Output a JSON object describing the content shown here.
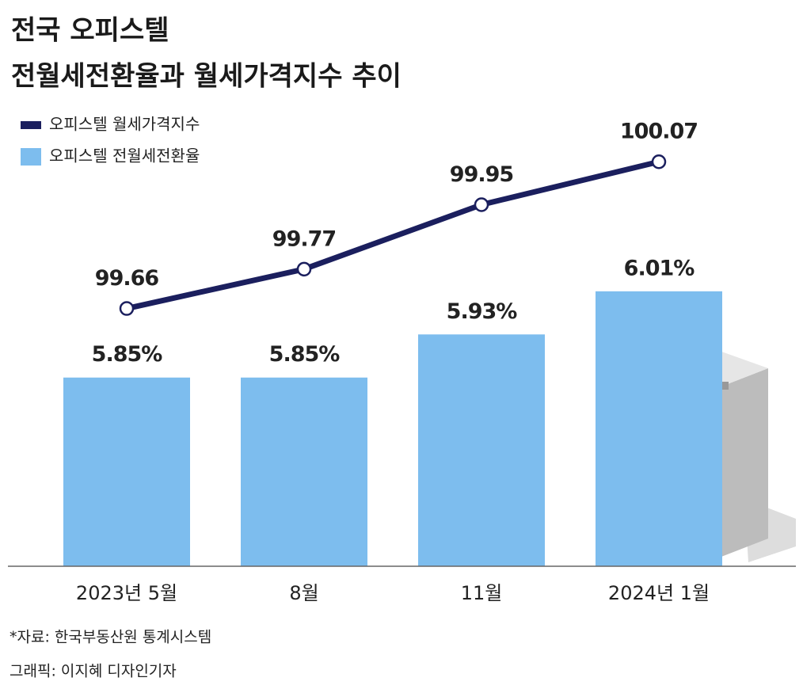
{
  "chart_data": {
    "type": "bar",
    "title": [
      "전국 오피스텔",
      "전월세전환율과 월세가격지수 추이"
    ],
    "categories": [
      "2023년 5월",
      "8월",
      "11월",
      "2024년 1월"
    ],
    "series": [
      {
        "name": "오피스텔 월세가격지수",
        "type": "line",
        "axis": "y2",
        "color": "#1b1f5e",
        "values": [
          99.66,
          99.77,
          99.95,
          100.07
        ]
      },
      {
        "name": "오피스텔 전월세전환율",
        "type": "bar",
        "color": "#7dbdee",
        "values": [
          5.85,
          5.85,
          5.93,
          6.01
        ],
        "value_labels": [
          "5.85%",
          "5.85%",
          "5.93%",
          "6.01%"
        ]
      }
    ],
    "ylim": [
      5.5,
      6.33
    ],
    "y2lim": [
      98.94,
      100.19
    ],
    "source": "*자료: 한국부동산원 통계시스템",
    "credit": "그래픽: 이지혜 디자인기자"
  }
}
